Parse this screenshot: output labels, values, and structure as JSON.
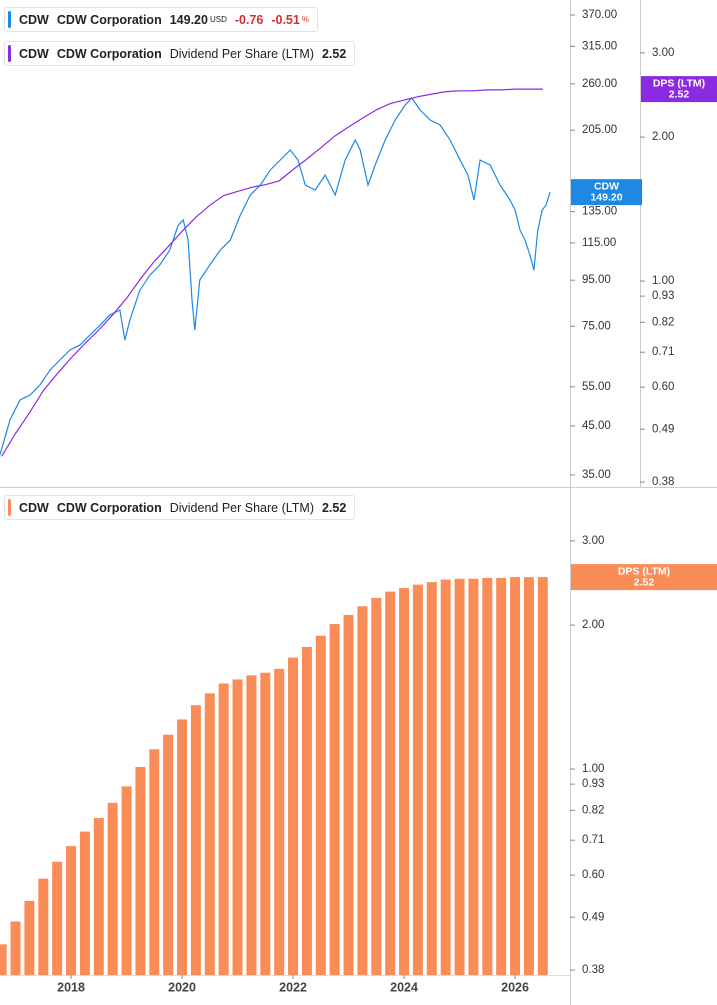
{
  "chart_data": [
    {
      "type": "line",
      "legend": [
        {
          "ticker": "CDW",
          "name": "CDW Corporation",
          "price": "149.20",
          "currency": "USD",
          "change": "-0.76",
          "change_pct": "-0.51",
          "pct_unit": "%"
        },
        {
          "ticker": "CDW",
          "name": "CDW Corporation",
          "metric": "Dividend Per Share (LTM)",
          "value": "2.52"
        }
      ],
      "log_scale": true,
      "xlim": [
        2016.72,
        2026.99
      ],
      "ylim": [
        32.9,
        399.6
      ],
      "yticks": [
        {
          "value": 370,
          "label": "370.00"
        },
        {
          "value": 315,
          "label": "315.00"
        },
        {
          "value": 260,
          "label": "260.00"
        },
        {
          "value": 205,
          "label": "205.00"
        },
        {
          "value": 135,
          "label": "135.00"
        },
        {
          "value": 115,
          "label": "115.00"
        },
        {
          "value": 95,
          "label": "95.00"
        },
        {
          "value": 75,
          "label": "75.00"
        },
        {
          "value": 55,
          "label": "55.00"
        },
        {
          "value": 45,
          "label": "45.00"
        },
        {
          "value": 35,
          "label": "35.00"
        }
      ],
      "y2lim": [
        0.371,
        3.87
      ],
      "y2ticks": [
        {
          "value": 3,
          "label": "3.00"
        },
        {
          "value": 2,
          "label": "2.00"
        },
        {
          "value": 1,
          "label": "1.00"
        },
        0.93,
        0.82,
        0.71,
        {
          "value": 0.6,
          "label": "0.60"
        },
        0.49,
        0.38
      ],
      "series": [
        {
          "name": "CDW",
          "color": "#1e88e5",
          "axis": "y",
          "last_label": "149.20",
          "x": [
            2016.72,
            2016.9,
            2017.08,
            2017.26,
            2017.44,
            2017.62,
            2017.8,
            2017.98,
            2018.16,
            2018.34,
            2018.52,
            2018.7,
            2018.88,
            2018.97,
            2019.06,
            2019.24,
            2019.42,
            2019.6,
            2019.78,
            2019.93,
            2020.02,
            2020.11,
            2020.18,
            2020.23,
            2020.32,
            2020.5,
            2020.69,
            2020.87,
            2021.05,
            2021.23,
            2021.41,
            2021.59,
            2021.77,
            2021.95,
            2022.09,
            2022.22,
            2022.4,
            2022.58,
            2022.76,
            2022.94,
            2023.12,
            2023.21,
            2023.35,
            2023.48,
            2023.66,
            2023.84,
            2024.02,
            2024.14,
            2024.29,
            2024.47,
            2024.65,
            2024.83,
            2025.01,
            2025.15,
            2025.26,
            2025.37,
            2025.55,
            2025.73,
            2025.91,
            2026.0,
            2026.09,
            2026.18,
            2026.27,
            2026.34,
            2026.41,
            2026.49,
            2026.56,
            2026.63
          ],
          "values": [
            38.8,
            46.4,
            51.4,
            52.7,
            55.5,
            59.9,
            63.1,
            66.4,
            68.1,
            71.7,
            75.4,
            79.5,
            81.5,
            69.9,
            77.4,
            90.3,
            97.5,
            102.7,
            110.9,
            126.0,
            129.4,
            116.7,
            85.8,
            73.6,
            95.1,
            102.7,
            110.9,
            116.7,
            132.6,
            147.0,
            154.7,
            167.1,
            175.9,
            185.2,
            175.9,
            154.7,
            150.8,
            162.8,
            147.0,
            175.9,
            194.9,
            185.2,
            154.7,
            171.5,
            194.9,
            216.0,
            233.2,
            241.8,
            227.3,
            216.0,
            210.5,
            194.9,
            175.9,
            162.8,
            143.3,
            175.9,
            171.5,
            154.7,
            143.3,
            136.1,
            122.8,
            116.7,
            108.0,
            100.0,
            122.8,
            136.1,
            139.7,
            149.2
          ]
        },
        {
          "name": "DPS (LTM)",
          "color": "#8a2be2",
          "axis": "y2",
          "last_label": "2.52",
          "x": [
            2016.75,
            2017.0,
            2017.25,
            2017.5,
            2017.75,
            2018.0,
            2018.25,
            2018.5,
            2018.75,
            2019.0,
            2019.25,
            2019.5,
            2019.75,
            2020.0,
            2020.25,
            2020.5,
            2020.75,
            2021.0,
            2021.25,
            2021.5,
            2021.75,
            2022.0,
            2022.25,
            2022.5,
            2022.75,
            2023.0,
            2023.25,
            2023.5,
            2023.75,
            2024.0,
            2024.25,
            2024.5,
            2024.75,
            2025.0,
            2025.25,
            2025.5,
            2025.75,
            2026.0,
            2026.25,
            2026.5
          ],
          "values": [
            0.43,
            0.48,
            0.53,
            0.59,
            0.64,
            0.69,
            0.74,
            0.79,
            0.85,
            0.92,
            1.01,
            1.1,
            1.18,
            1.27,
            1.36,
            1.44,
            1.51,
            1.54,
            1.57,
            1.59,
            1.62,
            1.71,
            1.8,
            1.9,
            2.01,
            2.1,
            2.19,
            2.28,
            2.35,
            2.39,
            2.43,
            2.46,
            2.49,
            2.5,
            2.5,
            2.51,
            2.51,
            2.52,
            2.52,
            2.52
          ]
        }
      ]
    },
    {
      "type": "bar",
      "legend": [
        {
          "ticker": "CDW",
          "name": "CDW Corporation",
          "metric": "Dividend Per Share (LTM)",
          "value": "2.52"
        }
      ],
      "log_scale": true,
      "xlim": [
        2016.72,
        2026.99
      ],
      "xticks": [
        2018,
        2020,
        2022,
        2024,
        2026
      ],
      "ylim": [
        0.371,
        3.87
      ],
      "yticks": [
        {
          "value": 3,
          "label": "3.00"
        },
        {
          "value": 2,
          "label": "2.00"
        },
        {
          "value": 1,
          "label": "1.00"
        },
        0.93,
        0.82,
        0.71,
        {
          "value": 0.6,
          "label": "0.60"
        },
        0.49,
        0.38
      ],
      "series": [
        {
          "name": "DPS (LTM)",
          "color": "#fa8c58",
          "last_label": "2.52",
          "x": [
            2016.75,
            2017.0,
            2017.25,
            2017.5,
            2017.75,
            2018.0,
            2018.25,
            2018.5,
            2018.75,
            2019.0,
            2019.25,
            2019.5,
            2019.75,
            2020.0,
            2020.25,
            2020.5,
            2020.75,
            2021.0,
            2021.25,
            2021.5,
            2021.75,
            2022.0,
            2022.25,
            2022.5,
            2022.75,
            2023.0,
            2023.25,
            2023.5,
            2023.75,
            2024.0,
            2024.25,
            2024.5,
            2024.75,
            2025.0,
            2025.25,
            2025.5,
            2025.75,
            2026.0,
            2026.25,
            2026.5
          ],
          "values": [
            0.43,
            0.48,
            0.53,
            0.59,
            0.64,
            0.69,
            0.74,
            0.79,
            0.85,
            0.92,
            1.01,
            1.1,
            1.18,
            1.27,
            1.36,
            1.44,
            1.51,
            1.54,
            1.57,
            1.59,
            1.62,
            1.71,
            1.8,
            1.9,
            2.01,
            2.1,
            2.19,
            2.28,
            2.35,
            2.39,
            2.43,
            2.46,
            2.49,
            2.5,
            2.5,
            2.51,
            2.51,
            2.52,
            2.52,
            2.52
          ]
        }
      ]
    }
  ]
}
